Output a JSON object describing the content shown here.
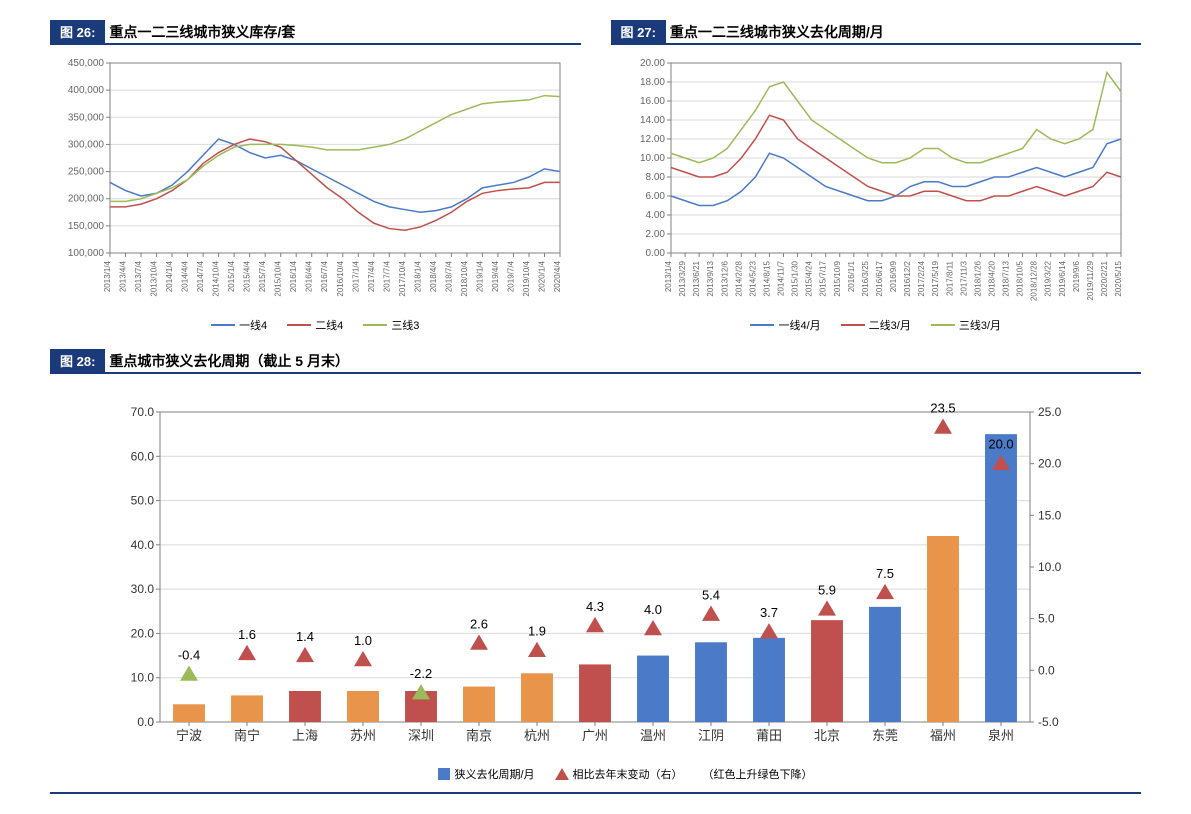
{
  "colors": {
    "navy": "#1a3a7a",
    "blue": "#4a7ac8",
    "red": "#c0504d",
    "green": "#9bbb59",
    "orange": "#e8944a",
    "gridline": "#d9d9d9",
    "axis": "#808080",
    "text": "#333333"
  },
  "chart26": {
    "tag": "图 26:",
    "title": "重点一二三线城市狭义库存/套",
    "ylim": [
      100000,
      450000
    ],
    "ytick_step": 50000,
    "yticks": [
      "100,000",
      "150,000",
      "200,000",
      "250,000",
      "300,000",
      "350,000",
      "400,000",
      "450,000"
    ],
    "x_labels": [
      "2013/1/4",
      "2013/4/4",
      "2013/7/4",
      "2013/10/4",
      "2014/1/4",
      "2014/4/4",
      "2014/7/4",
      "2014/10/4",
      "2015/1/4",
      "2015/4/4",
      "2015/7/4",
      "2015/10/4",
      "2016/1/4",
      "2016/4/4",
      "2016/7/4",
      "2016/10/4",
      "2017/1/4",
      "2017/4/4",
      "2017/7/4",
      "2017/10/4",
      "2018/1/4",
      "2018/4/4",
      "2018/7/4",
      "2018/10/4",
      "2019/1/4",
      "2019/4/4",
      "2019/7/4",
      "2019/10/4",
      "2020/1/4",
      "2020/4/4"
    ],
    "series": [
      {
        "name": "一线4",
        "color": "#4a7ac8",
        "values": [
          230000,
          215000,
          205000,
          210000,
          225000,
          250000,
          280000,
          310000,
          300000,
          285000,
          275000,
          280000,
          270000,
          255000,
          240000,
          225000,
          210000,
          195000,
          185000,
          180000,
          175000,
          178000,
          185000,
          200000,
          220000,
          225000,
          230000,
          240000,
          255000,
          250000
        ]
      },
      {
        "name": "二线4",
        "color": "#c0504d",
        "values": [
          185000,
          185000,
          190000,
          200000,
          215000,
          235000,
          265000,
          285000,
          300000,
          310000,
          305000,
          295000,
          270000,
          245000,
          220000,
          200000,
          175000,
          155000,
          145000,
          142000,
          148000,
          160000,
          175000,
          195000,
          210000,
          215000,
          218000,
          220000,
          230000,
          230000
        ]
      },
      {
        "name": "三线3",
        "color": "#9bbb59",
        "values": [
          195000,
          195000,
          200000,
          210000,
          220000,
          235000,
          260000,
          280000,
          295000,
          300000,
          300000,
          300000,
          298000,
          295000,
          290000,
          290000,
          290000,
          295000,
          300000,
          310000,
          325000,
          340000,
          355000,
          365000,
          375000,
          378000,
          380000,
          382000,
          390000,
          388000
        ]
      }
    ],
    "grid_color": "#d9d9d9",
    "background_color": "#ffffff",
    "line_width": 1.5
  },
  "chart27": {
    "tag": "图 27:",
    "title": "重点一二三线城市狭义去化周期/月",
    "ylim": [
      0,
      20
    ],
    "ytick_step": 2,
    "yticks": [
      "0.00",
      "2.00",
      "4.00",
      "6.00",
      "8.00",
      "10.00",
      "12.00",
      "14.00",
      "16.00",
      "18.00",
      "20.00"
    ],
    "x_labels": [
      "2013/1/4",
      "2013/3/29",
      "2013/6/21",
      "2013/9/13",
      "2013/12/6",
      "2014/2/28",
      "2014/5/23",
      "2014/8/15",
      "2014/11/7",
      "2015/1/30",
      "2015/4/24",
      "2015/7/17",
      "2015/10/9",
      "2016/1/1",
      "2016/3/25",
      "2016/6/17",
      "2016/9/9",
      "2016/12/2",
      "2017/2/24",
      "2017/5/19",
      "2017/8/11",
      "2017/11/3",
      "2018/1/26",
      "2018/4/20",
      "2018/7/13",
      "2018/10/5",
      "2018/12/28",
      "2019/3/22",
      "2019/6/14",
      "2019/9/6",
      "2019/11/29",
      "2020/2/21",
      "2020/5/15"
    ],
    "series": [
      {
        "name": "一线4/月",
        "color": "#4a7ac8",
        "values": [
          6,
          5.5,
          5,
          5,
          5.5,
          6.5,
          8,
          10.5,
          10,
          9,
          8,
          7,
          6.5,
          6,
          5.5,
          5.5,
          6,
          7,
          7.5,
          7.5,
          7,
          7,
          7.5,
          8,
          8,
          8.5,
          9,
          8.5,
          8,
          8.5,
          9,
          11.5,
          12
        ]
      },
      {
        "name": "二线3/月",
        "color": "#c0504d",
        "values": [
          9,
          8.5,
          8,
          8,
          8.5,
          10,
          12,
          14.5,
          14,
          12,
          11,
          10,
          9,
          8,
          7,
          6.5,
          6,
          6,
          6.5,
          6.5,
          6,
          5.5,
          5.5,
          6,
          6,
          6.5,
          7,
          6.5,
          6,
          6.5,
          7,
          8.5,
          8
        ]
      },
      {
        "name": "三线3/月",
        "color": "#9bbb59",
        "values": [
          10.5,
          10,
          9.5,
          10,
          11,
          13,
          15,
          17.5,
          18,
          16,
          14,
          13,
          12,
          11,
          10,
          9.5,
          9.5,
          10,
          11,
          11,
          10,
          9.5,
          9.5,
          10,
          10.5,
          11,
          13,
          12,
          11.5,
          12,
          13,
          19,
          17
        ]
      }
    ],
    "grid_color": "#d9d9d9",
    "background_color": "#ffffff",
    "line_width": 1.5
  },
  "chart28": {
    "tag": "图 28:",
    "title": "重点城市狭义去化周期（截止 5 月末）",
    "y_left_lim": [
      0,
      70
    ],
    "y_left_step": 10,
    "y_left_ticks": [
      "0.0",
      "10.0",
      "20.0",
      "30.0",
      "40.0",
      "50.0",
      "60.0",
      "70.0"
    ],
    "y_right_lim": [
      -5,
      25
    ],
    "y_right_step": 5,
    "y_right_ticks": [
      "-5.0",
      "0.0",
      "5.0",
      "10.0",
      "15.0",
      "20.0",
      "25.0"
    ],
    "legend": {
      "bar": "狭义去化周期/月",
      "triangle": "相比去年末变动（右）",
      "note": "（红色上升绿色下降）"
    },
    "bar_width": 0.55,
    "cities": [
      {
        "name": "宁波",
        "bar": 4,
        "bar_color": "#e8944a",
        "tri": -0.4,
        "tri_color": "#9bbb59",
        "label": "-0.4"
      },
      {
        "name": "南宁",
        "bar": 6,
        "bar_color": "#e8944a",
        "tri": 1.6,
        "tri_color": "#c0504d",
        "label": "1.6"
      },
      {
        "name": "上海",
        "bar": 7,
        "bar_color": "#c0504d",
        "tri": 1.4,
        "tri_color": "#c0504d",
        "label": "1.4"
      },
      {
        "name": "苏州",
        "bar": 7,
        "bar_color": "#e8944a",
        "tri": 1.0,
        "tri_color": "#c0504d",
        "label": "1.0"
      },
      {
        "name": "深圳",
        "bar": 7,
        "bar_color": "#c0504d",
        "tri": -2.2,
        "tri_color": "#9bbb59",
        "label": "-2.2"
      },
      {
        "name": "南京",
        "bar": 8,
        "bar_color": "#e8944a",
        "tri": 2.6,
        "tri_color": "#c0504d",
        "label": "2.6"
      },
      {
        "name": "杭州",
        "bar": 11,
        "bar_color": "#e8944a",
        "tri": 1.9,
        "tri_color": "#c0504d",
        "label": "1.9"
      },
      {
        "name": "广州",
        "bar": 13,
        "bar_color": "#c0504d",
        "tri": 4.3,
        "tri_color": "#c0504d",
        "label": "4.3"
      },
      {
        "name": "温州",
        "bar": 15,
        "bar_color": "#4a7ac8",
        "tri": 4.0,
        "tri_color": "#c0504d",
        "label": "4.0"
      },
      {
        "name": "江阴",
        "bar": 18,
        "bar_color": "#4a7ac8",
        "tri": 5.4,
        "tri_color": "#c0504d",
        "label": "5.4"
      },
      {
        "name": "莆田",
        "bar": 19,
        "bar_color": "#4a7ac8",
        "tri": 3.7,
        "tri_color": "#c0504d",
        "label": "3.7"
      },
      {
        "name": "北京",
        "bar": 23,
        "bar_color": "#c0504d",
        "tri": 5.9,
        "tri_color": "#c0504d",
        "label": "5.9"
      },
      {
        "name": "东莞",
        "bar": 26,
        "bar_color": "#4a7ac8",
        "tri": 7.5,
        "tri_color": "#c0504d",
        "label": "7.5"
      },
      {
        "name": "福州",
        "bar": 42,
        "bar_color": "#e8944a",
        "tri": 23.5,
        "tri_color": "#c0504d",
        "label": "23.5"
      },
      {
        "name": "泉州",
        "bar": 65,
        "bar_color": "#4a7ac8",
        "tri": 20.0,
        "tri_color": "#c0504d",
        "label": "20.0"
      }
    ],
    "grid_color": "#d9d9d9",
    "background_color": "#ffffff"
  }
}
